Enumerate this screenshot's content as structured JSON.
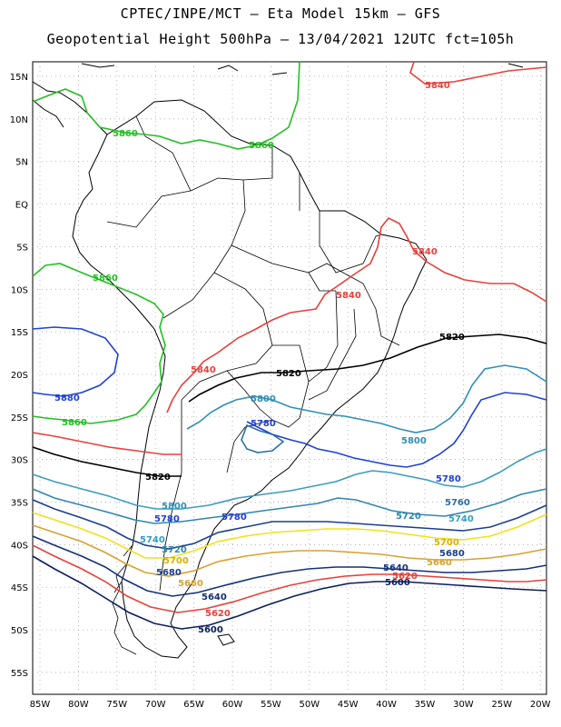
{
  "header": {
    "line1": "CPTEC/INPE/MCT –  Eta Model 15km – GFS",
    "line2": "Geopotential Height 500hPa – 13/04/2021 12UTC fct=105h"
  },
  "map": {
    "lat_ticks": [
      "15N",
      "10N",
      "5N",
      "EQ",
      "5S",
      "10S",
      "15S",
      "20S",
      "25S",
      "30S",
      "35S",
      "40S",
      "45S",
      "50S",
      "55S"
    ],
    "lon_ticks": [
      "85W",
      "80W",
      "75W",
      "70W",
      "65W",
      "60W",
      "55W",
      "50W",
      "45W",
      "40W",
      "35W",
      "30W",
      "25W",
      "20W"
    ],
    "colors": {
      "5600": "#0b1e5c",
      "5620": "#e8403a",
      "5640": "#13307a",
      "5660": "#d9a030",
      "5680": "#1a3f8f",
      "5700": "#f2e01a",
      "5720": "#2f86b0",
      "5740": "#3a9cc0",
      "5760": "#2a6fa8",
      "5780": "#1e40d8",
      "5800": "#2f8fb8",
      "5820": "#000000",
      "5840": "#e8403a",
      "5860": "#22c022",
      "5880": "#1e40d8"
    },
    "contour_labels": [
      {
        "text": "5840",
        "id": "l5840a"
      },
      {
        "text": "5860",
        "id": "l5860a"
      },
      {
        "text": "5860",
        "id": "l5860b"
      },
      {
        "text": "5840",
        "id": "l5840b"
      },
      {
        "text": "5860",
        "id": "l5860c"
      },
      {
        "text": "5840",
        "id": "l5840c"
      },
      {
        "text": "5820",
        "id": "l5820a"
      },
      {
        "text": "5880",
        "id": "l5880a"
      },
      {
        "text": "5840",
        "id": "l5840d"
      },
      {
        "text": "5820",
        "id": "l5820b"
      },
      {
        "text": "5860",
        "id": "l5860d"
      },
      {
        "text": "5800",
        "id": "l5800a"
      },
      {
        "text": "5780",
        "id": "l5780a"
      },
      {
        "text": "5800",
        "id": "l5800b"
      },
      {
        "text": "5820",
        "id": "l5820c"
      },
      {
        "text": "5780",
        "id": "l5780b"
      },
      {
        "text": "5760",
        "id": "l5760a"
      },
      {
        "text": "5800",
        "id": "l5800c"
      },
      {
        "text": "5780",
        "id": "l5780c"
      },
      {
        "text": "5780",
        "id": "l5780d"
      },
      {
        "text": "5720",
        "id": "l5720a"
      },
      {
        "text": "5740",
        "id": "l5740a"
      },
      {
        "text": "5740",
        "id": "l5740b"
      },
      {
        "text": "5720",
        "id": "l5720b"
      },
      {
        "text": "5700",
        "id": "l5700a"
      },
      {
        "text": "5700",
        "id": "l5700b"
      },
      {
        "text": "5680",
        "id": "l5680a"
      },
      {
        "text": "5680",
        "id": "l5680b"
      },
      {
        "text": "5660",
        "id": "l5660a"
      },
      {
        "text": "5660",
        "id": "l5660b"
      },
      {
        "text": "5640",
        "id": "l5640a"
      },
      {
        "text": "5620",
        "id": "l5620a"
      },
      {
        "text": "5600",
        "id": "l5600a"
      },
      {
        "text": "5640",
        "id": "l5640b"
      },
      {
        "text": "5620",
        "id": "l5620b"
      },
      {
        "text": "5600",
        "id": "l5600b"
      }
    ]
  }
}
